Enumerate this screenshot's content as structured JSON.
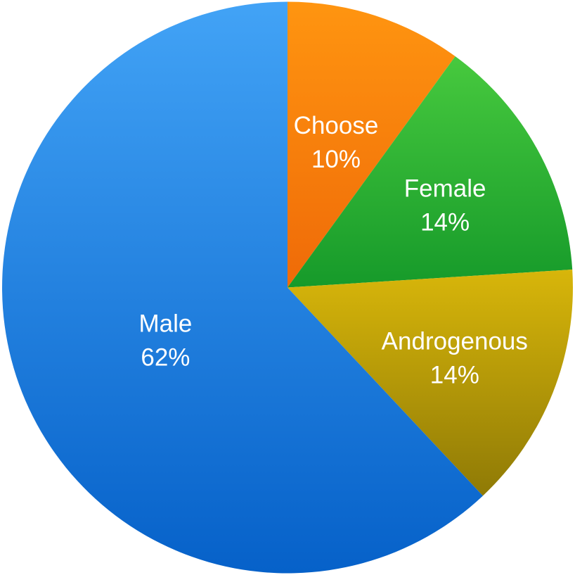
{
  "chart_data": {
    "type": "pie",
    "title": "",
    "start_angle_deg": 0,
    "direction": "clockwise",
    "slices": [
      {
        "label": "Choose",
        "value": 10,
        "value_label": "10%",
        "color_top": "#ff9510",
        "color_bottom": "#ef6a08"
      },
      {
        "label": "Female",
        "value": 14,
        "value_label": "14%",
        "color_top": "#47c93e",
        "color_bottom": "#169a2a"
      },
      {
        "label": "Androgenous",
        "value": 14,
        "value_label": "14%",
        "color_top": "#d8b60a",
        "color_bottom": "#8f7a06"
      },
      {
        "label": "Male",
        "value": 62,
        "value_label": "62%",
        "color_top": "#42a3f6",
        "color_bottom": "#0661c9"
      }
    ]
  }
}
